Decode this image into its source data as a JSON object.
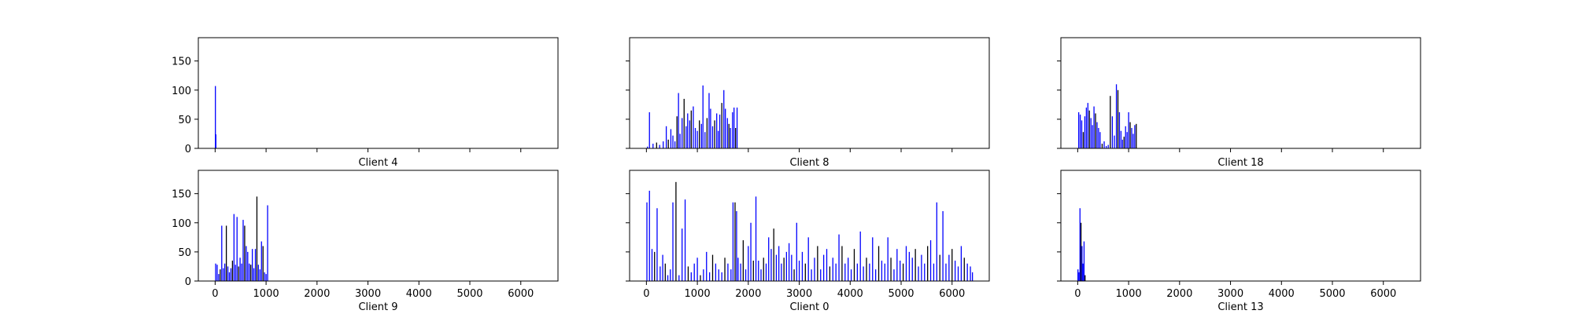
{
  "figure": {
    "background": "#ffffff",
    "bar_colors": [
      "#0000ff",
      "#000000"
    ]
  },
  "chart_data": [
    {
      "type": "bar",
      "xlabel": "Client 4",
      "xlim": [
        -330,
        6730
      ],
      "ylim": [
        0,
        190
      ],
      "yticks": [
        0,
        50,
        100,
        150
      ],
      "xticks": [
        0,
        1000,
        2000,
        3000,
        4000,
        5000,
        6000
      ],
      "show_xtick_labels": false,
      "show_ytick_labels": true,
      "x": [
        5,
        10,
        15
      ],
      "values": [
        107,
        2,
        24
      ]
    },
    {
      "type": "bar",
      "xlabel": "Client 8",
      "xlim": [
        -330,
        6730
      ],
      "ylim": [
        0,
        190
      ],
      "yticks": [
        0,
        50,
        100,
        150
      ],
      "xticks": [
        0,
        1000,
        2000,
        3000,
        4000,
        5000,
        6000
      ],
      "show_xtick_labels": false,
      "show_ytick_labels": false,
      "x": [
        20,
        60,
        130,
        200,
        260,
        330,
        390,
        430,
        480,
        520,
        560,
        600,
        630,
        660,
        700,
        740,
        780,
        810,
        850,
        880,
        920,
        960,
        1000,
        1040,
        1080,
        1110,
        1150,
        1190,
        1230,
        1260,
        1300,
        1340,
        1380,
        1410,
        1440,
        1480,
        1520,
        1550,
        1590,
        1620,
        1650,
        1690,
        1720,
        1750,
        1780
      ],
      "values": [
        3,
        62,
        8,
        10,
        6,
        12,
        38,
        15,
        33,
        22,
        12,
        55,
        95,
        25,
        52,
        85,
        38,
        60,
        48,
        65,
        72,
        35,
        30,
        48,
        42,
        108,
        28,
        52,
        95,
        68,
        38,
        48,
        60,
        30,
        58,
        78,
        100,
        68,
        52,
        42,
        35,
        62,
        70,
        35,
        70
      ]
    },
    {
      "type": "bar",
      "xlabel": "Client 18",
      "xlim": [
        -330,
        6730
      ],
      "ylim": [
        0,
        190
      ],
      "yticks": [
        0,
        50,
        100,
        150
      ],
      "xticks": [
        0,
        1000,
        2000,
        3000,
        4000,
        5000,
        6000
      ],
      "show_xtick_labels": false,
      "show_ytick_labels": false,
      "x": [
        20,
        50,
        80,
        110,
        140,
        170,
        200,
        230,
        260,
        290,
        320,
        350,
        380,
        410,
        440,
        480,
        520,
        560,
        600,
        640,
        680,
        720,
        760,
        790,
        820,
        850,
        880,
        910,
        940,
        970,
        1000,
        1030,
        1060,
        1090,
        1120,
        1150
      ],
      "values": [
        62,
        58,
        48,
        28,
        55,
        70,
        78,
        65,
        52,
        40,
        72,
        60,
        45,
        35,
        28,
        8,
        12,
        4,
        6,
        90,
        55,
        22,
        110,
        100,
        62,
        30,
        15,
        20,
        38,
        28,
        62,
        45,
        35,
        25,
        40,
        42
      ]
    },
    {
      "type": "bar",
      "xlabel": "Client 9",
      "xlim": [
        -330,
        6730
      ],
      "ylim": [
        0,
        190
      ],
      "yticks": [
        0,
        50,
        100,
        150
      ],
      "xticks": [
        0,
        1000,
        2000,
        3000,
        4000,
        5000,
        6000
      ],
      "xtick_labels": [
        "0",
        "1000",
        "2000",
        "3000",
        "4000",
        "5000",
        "6000"
      ],
      "show_xtick_labels": true,
      "show_ytick_labels": true,
      "x": [
        10,
        40,
        70,
        100,
        130,
        160,
        190,
        220,
        250,
        280,
        310,
        340,
        370,
        400,
        430,
        460,
        490,
        520,
        550,
        580,
        610,
        640,
        670,
        700,
        730,
        760,
        790,
        820,
        850,
        880,
        910,
        940,
        970,
        1000,
        1030
      ],
      "values": [
        30,
        28,
        12,
        20,
        95,
        22,
        30,
        95,
        25,
        15,
        22,
        35,
        115,
        28,
        110,
        25,
        40,
        30,
        105,
        95,
        60,
        50,
        30,
        28,
        55,
        22,
        55,
        145,
        28,
        20,
        68,
        60,
        15,
        12,
        130
      ]
    },
    {
      "type": "bar",
      "xlabel": "Client 0",
      "xlim": [
        -330,
        6730
      ],
      "ylim": [
        0,
        190
      ],
      "yticks": [
        0,
        50,
        100,
        150
      ],
      "xticks": [
        0,
        1000,
        2000,
        3000,
        4000,
        5000,
        6000
      ],
      "xtick_labels": [
        "0",
        "1000",
        "2000",
        "3000",
        "4000",
        "5000",
        "6000"
      ],
      "show_xtick_labels": true,
      "show_ytick_labels": false,
      "x": [
        10,
        60,
        110,
        160,
        210,
        270,
        320,
        370,
        420,
        470,
        520,
        580,
        640,
        700,
        760,
        820,
        880,
        940,
        1000,
        1060,
        1120,
        1180,
        1240,
        1300,
        1360,
        1420,
        1480,
        1540,
        1600,
        1660,
        1700,
        1740,
        1770,
        1800,
        1850,
        1900,
        1950,
        2000,
        2050,
        2100,
        2150,
        2200,
        2250,
        2300,
        2350,
        2400,
        2450,
        2500,
        2550,
        2600,
        2650,
        2700,
        2750,
        2800,
        2850,
        2900,
        2950,
        3000,
        3060,
        3120,
        3180,
        3240,
        3300,
        3360,
        3420,
        3480,
        3540,
        3600,
        3660,
        3720,
        3780,
        3840,
        3900,
        3960,
        4020,
        4080,
        4140,
        4200,
        4260,
        4320,
        4380,
        4440,
        4500,
        4560,
        4620,
        4680,
        4740,
        4800,
        4860,
        4920,
        4980,
        5040,
        5100,
        5160,
        5220,
        5280,
        5340,
        5400,
        5460,
        5520,
        5580,
        5640,
        5700,
        5760,
        5820,
        5880,
        5940,
        6000,
        6060,
        6120,
        6180,
        6240,
        6300,
        6360,
        6400
      ],
      "values": [
        135,
        155,
        55,
        50,
        125,
        25,
        45,
        30,
        10,
        20,
        135,
        170,
        10,
        90,
        140,
        25,
        15,
        30,
        40,
        10,
        20,
        50,
        15,
        45,
        30,
        20,
        15,
        40,
        30,
        20,
        135,
        135,
        120,
        40,
        30,
        70,
        20,
        60,
        100,
        35,
        145,
        35,
        20,
        40,
        30,
        75,
        55,
        90,
        45,
        60,
        30,
        40,
        50,
        65,
        45,
        20,
        100,
        35,
        50,
        30,
        75,
        20,
        40,
        60,
        20,
        45,
        55,
        25,
        40,
        30,
        80,
        60,
        30,
        40,
        20,
        55,
        30,
        85,
        25,
        40,
        30,
        75,
        20,
        60,
        35,
        30,
        75,
        40,
        20,
        55,
        35,
        30,
        60,
        50,
        40,
        55,
        25,
        45,
        30,
        60,
        70,
        30,
        135,
        45,
        120,
        30,
        45,
        55,
        35,
        25,
        60,
        40,
        30,
        25,
        15
      ]
    },
    {
      "type": "bar",
      "xlabel": "Client 13",
      "xlim": [
        -330,
        6730
      ],
      "ylim": [
        0,
        190
      ],
      "yticks": [
        0,
        50,
        100,
        150
      ],
      "xticks": [
        0,
        1000,
        2000,
        3000,
        4000,
        5000,
        6000
      ],
      "xtick_labels": [
        "0",
        "1000",
        "2000",
        "3000",
        "4000",
        "5000",
        "6000"
      ],
      "show_xtick_labels": true,
      "show_ytick_labels": false,
      "x": [
        5,
        25,
        45,
        65,
        85,
        105,
        125,
        145
      ],
      "values": [
        20,
        15,
        125,
        100,
        60,
        30,
        68,
        10
      ]
    }
  ]
}
